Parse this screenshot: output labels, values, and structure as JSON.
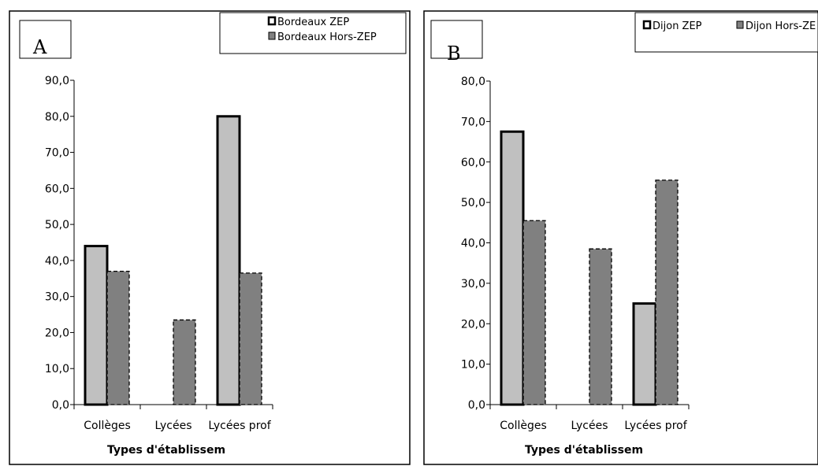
{
  "chart_data": [
    {
      "type": "bar",
      "panel_label": "A",
      "categories": [
        "Collèges",
        "Lycées",
        "Lycées prof"
      ],
      "series": [
        {
          "name": "Bordeaux ZEP",
          "values": [
            44.0,
            null,
            80.0
          ],
          "color": "#c0c0c0",
          "style": "solid-thick-border"
        },
        {
          "name": "Bordeaux Hors-ZEP",
          "values": [
            37.0,
            23.5,
            36.5
          ],
          "color": "#808080",
          "style": "dashed-border"
        }
      ],
      "xlabel": "Types d'établissem",
      "ylabel": "",
      "ylim": [
        0,
        90
      ],
      "yticks": [
        "0,0",
        "10,0",
        "20,0",
        "30,0",
        "40,0",
        "50,0",
        "60,0",
        "70,0",
        "80,0",
        "90,0"
      ],
      "grid": false,
      "legend_position": "top-right"
    },
    {
      "type": "bar",
      "panel_label": "B",
      "categories": [
        "Collèges",
        "Lycées",
        "Lycées prof"
      ],
      "series": [
        {
          "name": "Dijon ZEP",
          "values": [
            67.5,
            null,
            25.0
          ],
          "color": "#c0c0c0",
          "style": "solid-thick-border"
        },
        {
          "name": "Dijon Hors-ZE",
          "values": [
            45.5,
            38.5,
            55.5
          ],
          "color": "#808080",
          "style": "dashed-border"
        }
      ],
      "xlabel": "Types d'établissem",
      "ylabel": "",
      "ylim": [
        0,
        80
      ],
      "yticks": [
        "0,0",
        "10,0",
        "20,0",
        "30,0",
        "40,0",
        "50,0",
        "60,0",
        "70,0",
        "80,0"
      ],
      "grid": false,
      "legend_position": "top-right"
    }
  ]
}
